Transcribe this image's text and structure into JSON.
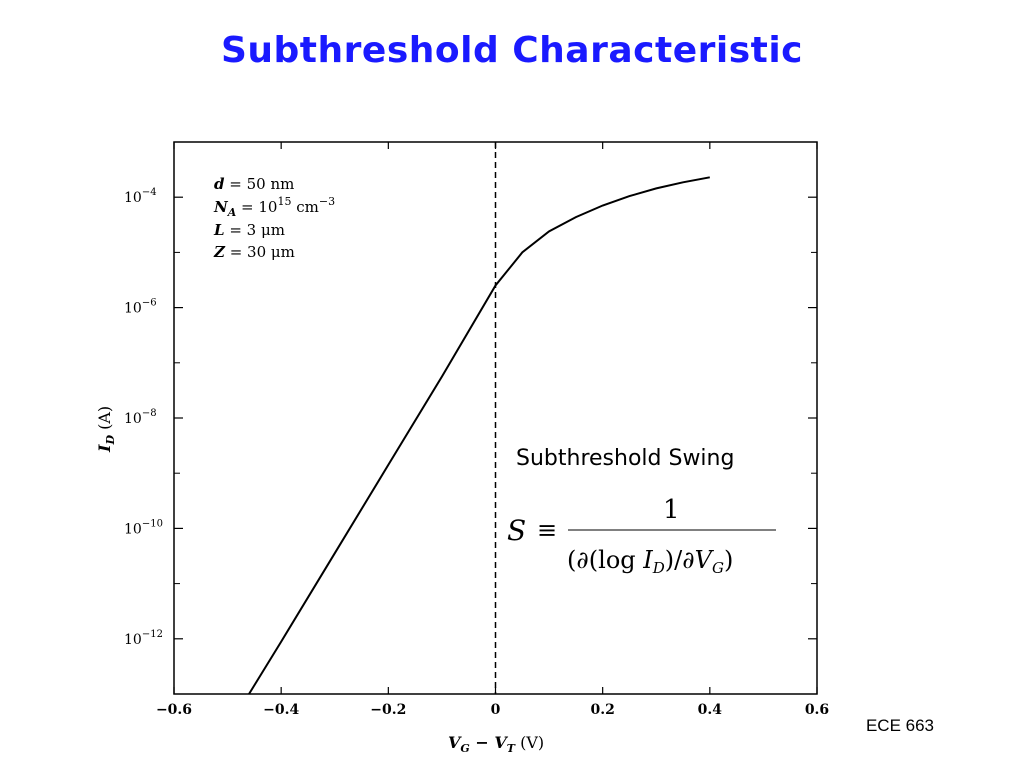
{
  "slide": {
    "title": "Subthreshold Characteristic",
    "footer": "ECE 663",
    "swing_label": "Subthreshold Swing",
    "formula": {
      "lhs": "S",
      "equiv": "≡",
      "numerator": "1",
      "open": "(∂(log ",
      "I": "I",
      "I_sub": "D",
      "mid": ")/∂",
      "V": "V",
      "V_sub": "G",
      "close": ")"
    }
  },
  "params": {
    "d": {
      "sym": "d",
      "value": " = 50 nm"
    },
    "NA": {
      "sym": "N",
      "sub": "A",
      "value": " = 10",
      "sup": "15",
      "unit": " cm",
      "unit_sup": "−3"
    },
    "L": {
      "sym": "L",
      "value": " = 3 μm"
    },
    "Z": {
      "sym": "Z",
      "value": " = 30 μm"
    }
  },
  "chart_data": {
    "type": "line",
    "xlabel": {
      "main": "V",
      "sub1": "G",
      "mid": " − V",
      "sub2": "T",
      "unit": " (V)"
    },
    "ylabel": {
      "main": "I",
      "sub": "D",
      "unit": " (A)"
    },
    "xlim": [
      -0.6,
      0.6
    ],
    "ylim_log10": [
      -13,
      -3
    ],
    "y_scale": "log",
    "x_ticks": [
      {
        "v": -0.6,
        "label": "−0.6"
      },
      {
        "v": -0.4,
        "label": "−0.4"
      },
      {
        "v": -0.2,
        "label": "−0.2"
      },
      {
        "v": 0.0,
        "label": "0"
      },
      {
        "v": 0.2,
        "label": "0.2"
      },
      {
        "v": 0.4,
        "label": "0.4"
      },
      {
        "v": 0.6,
        "label": "0.6"
      }
    ],
    "y_ticks": [
      {
        "exp": -12,
        "base": "10",
        "sup": "−12"
      },
      {
        "exp": -10,
        "base": "10",
        "sup": "−10"
      },
      {
        "exp": -8,
        "base": "10",
        "sup": "−8"
      },
      {
        "exp": -6,
        "base": "10",
        "sup": "−6"
      },
      {
        "exp": -4,
        "base": "10",
        "sup": "−4"
      }
    ],
    "y_minor_exps": [
      -13,
      -11,
      -9,
      -7,
      -5,
      -3
    ],
    "vline_x": 0.0,
    "series": [
      {
        "x": [
          -0.46,
          -0.4,
          -0.3,
          -0.2,
          -0.1,
          0.0,
          0.05,
          0.1,
          0.15,
          0.2,
          0.25,
          0.3,
          0.35,
          0.4
        ],
        "y_log10": [
          -13.0,
          -12.05,
          -10.45,
          -8.85,
          -7.25,
          -5.6,
          -5.0,
          -4.62,
          -4.36,
          -4.15,
          -3.98,
          -3.84,
          -3.73,
          -3.64
        ]
      }
    ]
  }
}
